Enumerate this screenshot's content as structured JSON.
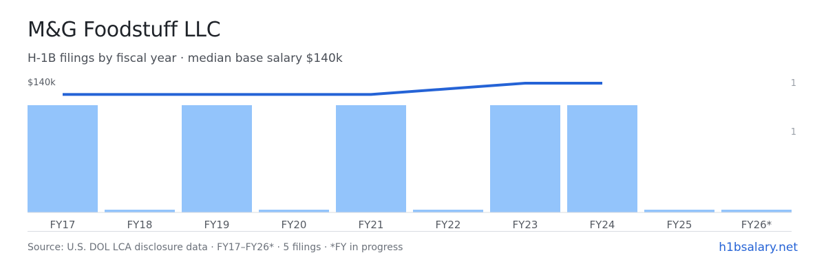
{
  "header": {
    "title": "M&G Foodstuff LLC",
    "subtitle": "H-1B filings by fiscal year · median base salary $140k"
  },
  "footer": {
    "source": "Source: U.S. DOL LCA disclosure data · FY17–FY26* · 5 filings · *FY in progress",
    "site": "h1bsalary.net"
  },
  "colors": {
    "bar": "#93c4fb",
    "line": "#2563d6",
    "axis": "#d9dce1",
    "tick_text": "#555a62",
    "right_axis_text": "#9aa0a8"
  },
  "chart_data": {
    "type": "bar",
    "categories": [
      "FY17",
      "FY18",
      "FY19",
      "FY20",
      "FY21",
      "FY22",
      "FY23",
      "FY24",
      "FY25",
      "FY26*"
    ],
    "series": [
      {
        "values": [
          1,
          0,
          1,
          0,
          1,
          0,
          1,
          1,
          0,
          0
        ]
      }
    ],
    "line_series": {
      "values": [
        133,
        133,
        133,
        133,
        133,
        null,
        140,
        140,
        null,
        null
      ]
    },
    "left_axis_label": "$140k",
    "right_axis_ticks": [
      "1",
      "1"
    ],
    "ylim": [
      0,
      1
    ]
  }
}
